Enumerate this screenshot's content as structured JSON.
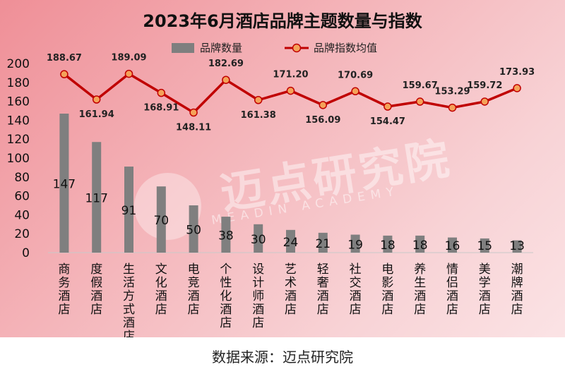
{
  "chart_data": {
    "type": "bar+line",
    "title": "2023年6月酒店品牌主题数量与指数",
    "categories": [
      "商务酒店",
      "度假酒店",
      "生活方式酒店",
      "文化酒店",
      "电竞酒店",
      "个性化酒店",
      "设计师酒店",
      "艺术酒店",
      "轻奢酒店",
      "社交酒店",
      "电影酒店",
      "养生酒店",
      "情侣酒店",
      "美学酒店",
      "潮牌酒店"
    ],
    "series": [
      {
        "name": "品牌数量",
        "type": "bar",
        "color": "#7f7f7f",
        "values": [
          147,
          117,
          91,
          70,
          50,
          38,
          30,
          24,
          21,
          19,
          18,
          18,
          16,
          15,
          13
        ]
      },
      {
        "name": "品牌指数均值",
        "type": "line",
        "color": "#c00000",
        "marker_color": "#f4a259",
        "values": [
          188.67,
          161.94,
          189.09,
          168.91,
          148.11,
          182.69,
          161.38,
          171.2,
          156.09,
          170.69,
          154.47,
          159.67,
          153.29,
          159.72,
          173.93
        ]
      }
    ],
    "y_ticks": [
      0,
      20,
      40,
      60,
      80,
      100,
      120,
      140,
      160,
      180,
      200
    ],
    "ylim": [
      0,
      200
    ],
    "legend_position": "top-center",
    "grid": false
  },
  "watermark": {
    "text": "迈点研究院",
    "subtext": "MEADIN ACADEMY"
  },
  "source_note": "数据来源：迈点研究院"
}
